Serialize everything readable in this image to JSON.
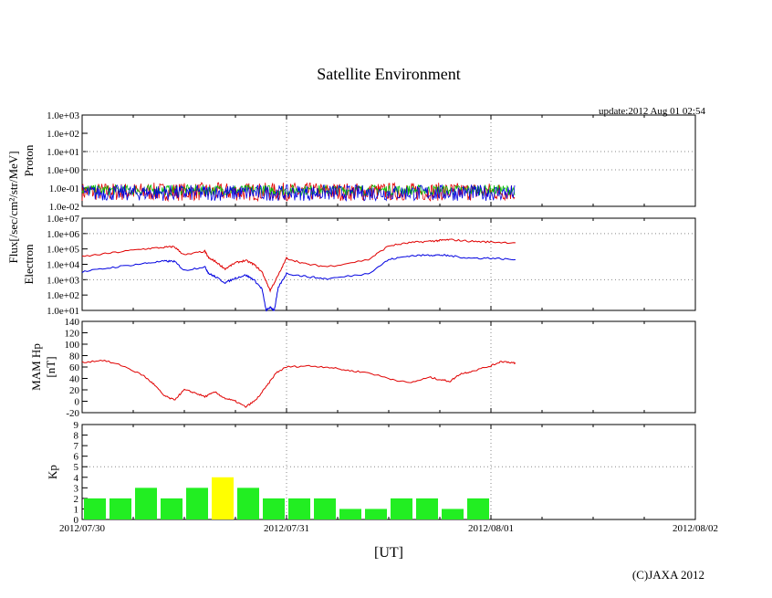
{
  "chart_data": {
    "type": "line",
    "title": "Satellite Environment",
    "update": "update:2012 Aug 01 02:54",
    "copyright": "(C)JAXA 2012",
    "xlabel": "[UT]",
    "x_ticks": [
      "2012/07/30",
      "2012/07/31",
      "2012/08/01",
      "2012/08/02"
    ],
    "x_range_days": [
      0,
      3
    ],
    "data_end_day": 2.12,
    "flux_label": "Flux[/sec/cm²/str/MeV]",
    "panels": {
      "proton": {
        "ylabel": "Proton",
        "scale": "log",
        "ylim_exp": [
          -2,
          3
        ],
        "y_ticks": [
          "1.0e-02",
          "1.0e-01",
          "1.0e+00",
          "1.0e+01",
          "1.0e+02",
          "1.0e+03"
        ],
        "series": [
          {
            "name": "proton-red",
            "color": "#e00000",
            "approx_range": [
              0.02,
              0.2
            ]
          },
          {
            "name": "proton-green",
            "color": "#00c000",
            "approx_range": [
              0.04,
              0.15
            ]
          },
          {
            "name": "proton-blue",
            "color": "#0000e0",
            "approx_range": [
              0.02,
              0.15
            ]
          }
        ]
      },
      "electron": {
        "ylabel": "Electron",
        "scale": "log",
        "ylim_exp": [
          1,
          7
        ],
        "y_ticks": [
          "1.0e+01",
          "1.0e+02",
          "1.0e+03",
          "1.0e+04",
          "1.0e+05",
          "1.0e+06",
          "1.0e+07"
        ],
        "series": [
          {
            "name": "electron-red",
            "color": "#e00000",
            "x": [
              0,
              0.15,
              0.3,
              0.4,
              0.45,
              0.5,
              0.6,
              0.62,
              0.65,
              0.7,
              0.75,
              0.8,
              0.84,
              0.88,
              0.92,
              0.96,
              1.0,
              1.1,
              1.2,
              1.4,
              1.5,
              1.6,
              1.7,
              1.75,
              1.8,
              1.9,
              2.0,
              2.12
            ],
            "log10": [
              4.5,
              4.75,
              5.0,
              5.1,
              5.15,
              4.6,
              4.85,
              4.4,
              4.2,
              3.7,
              4.1,
              4.25,
              4.0,
              3.5,
              2.3,
              3.3,
              4.4,
              4.0,
              3.85,
              4.3,
              5.2,
              5.4,
              5.5,
              5.55,
              5.6,
              5.5,
              5.45,
              5.4
            ]
          },
          {
            "name": "electron-blue",
            "color": "#0000e0",
            "x": [
              0,
              0.15,
              0.3,
              0.4,
              0.45,
              0.5,
              0.6,
              0.62,
              0.65,
              0.7,
              0.75,
              0.8,
              0.84,
              0.88,
              0.9,
              0.92,
              0.94,
              0.96,
              1.0,
              1.1,
              1.2,
              1.4,
              1.5,
              1.6,
              1.7,
              1.75,
              1.8,
              1.9,
              2.0,
              2.12
            ],
            "log10": [
              3.5,
              3.8,
              4.05,
              4.2,
              4.2,
              3.6,
              3.85,
              3.4,
              3.2,
              2.8,
              3.1,
              3.3,
              3.0,
              2.4,
              1.0,
              1.2,
              1.0,
              2.5,
              3.4,
              3.2,
              3.05,
              3.4,
              4.3,
              4.55,
              4.6,
              4.6,
              4.55,
              4.4,
              4.4,
              4.3
            ]
          }
        ]
      },
      "mam": {
        "ylabel": "MAM Hp",
        "ylabel2": "[nT]",
        "scale": "linear",
        "ylim": [
          -20,
          140
        ],
        "y_ticks": [
          -20,
          0,
          20,
          40,
          60,
          80,
          100,
          120,
          140
        ],
        "series": [
          {
            "name": "mam-red",
            "color": "#e00000",
            "x": [
              0,
              0.1,
              0.2,
              0.3,
              0.35,
              0.4,
              0.45,
              0.5,
              0.55,
              0.6,
              0.65,
              0.7,
              0.75,
              0.8,
              0.85,
              0.9,
              0.95,
              1.0,
              1.1,
              1.2,
              1.3,
              1.4,
              1.5,
              1.6,
              1.7,
              1.75,
              1.8,
              1.85,
              1.9,
              2.0,
              2.05,
              2.1,
              2.12
            ],
            "y": [
              68,
              72,
              62,
              45,
              30,
              10,
              2,
              20,
              15,
              8,
              16,
              5,
              0,
              -10,
              2,
              25,
              50,
              60,
              62,
              60,
              54,
              50,
              40,
              32,
              42,
              38,
              35,
              48,
              52,
              62,
              70,
              68,
              66
            ]
          }
        ]
      },
      "kp": {
        "ylabel": "Kp",
        "scale": "linear",
        "ylim": [
          0,
          9
        ],
        "y_ticks": [
          0,
          1,
          2,
          3,
          4,
          5,
          6,
          7,
          8,
          9
        ],
        "bar_width_days": 0.125,
        "values": [
          2,
          2,
          3,
          2,
          3,
          4,
          3,
          2,
          2,
          2,
          1,
          1,
          2,
          2,
          1,
          2
        ],
        "color_normal": "#22ee22",
        "color_high": "#ffff00",
        "high_threshold": 4
      }
    }
  }
}
